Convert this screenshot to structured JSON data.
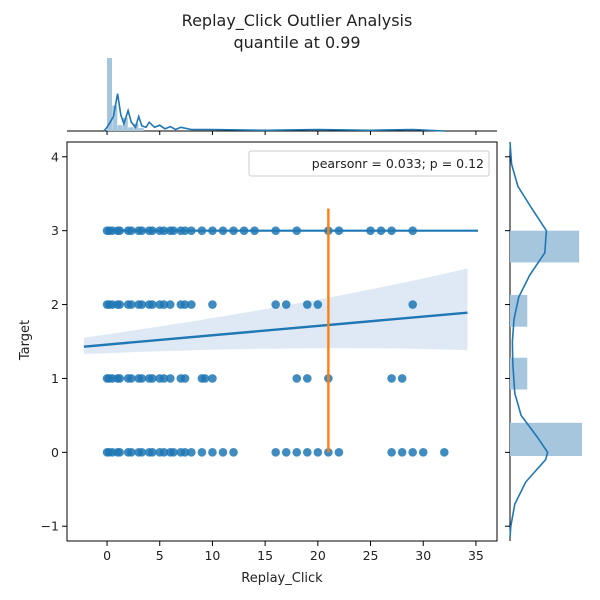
{
  "chart_data": {
    "type": "scatter",
    "title": "Replay_Click Outlier Analysis",
    "subtitle": "quantile at 0.99",
    "xlabel": "Replay_Click",
    "ylabel": "Target",
    "xlim": [
      -3.8,
      37.0
    ],
    "ylim": [
      -1.2,
      4.2
    ],
    "x_ticks": [
      0,
      5,
      10,
      15,
      20,
      25,
      30,
      35
    ],
    "y_ticks": [
      -1,
      0,
      1,
      2,
      3,
      4
    ],
    "legend": {
      "text": "pearsonr = 0.033; p = 0.12",
      "position": "top-right"
    },
    "series": [
      {
        "y": 3,
        "x": [
          0,
          0.2,
          0.5,
          1,
          1.2,
          2,
          2.3,
          3,
          3.3,
          4,
          4.3,
          5,
          5.4,
          6,
          6.3,
          7,
          7.4,
          8,
          9,
          10,
          11,
          12,
          13,
          14,
          16,
          18,
          21,
          22,
          25,
          26,
          27,
          29
        ]
      },
      {
        "y": 2,
        "x": [
          0,
          0.2,
          0.5,
          1,
          1.2,
          2,
          2.3,
          3,
          3.3,
          4,
          4.3,
          5,
          5.4,
          6,
          7,
          7.4,
          8,
          10,
          16,
          17,
          19,
          20,
          29
        ]
      },
      {
        "y": 1,
        "x": [
          0,
          0.2,
          0.5,
          1,
          1.2,
          2,
          2.3,
          3,
          3.3,
          4,
          4.3,
          5,
          5.4,
          6,
          7,
          7.4,
          9,
          9.3,
          10,
          18,
          19,
          21,
          27,
          28
        ]
      },
      {
        "y": 0,
        "x": [
          0,
          0.2,
          0.5,
          1,
          1.2,
          2,
          2.3,
          3,
          3.3,
          4,
          4.3,
          5,
          5.4,
          6,
          6.3,
          7,
          7.4,
          8,
          9,
          10,
          11,
          12,
          16,
          17,
          18,
          19,
          20,
          21,
          22,
          27,
          28,
          29,
          30,
          32
        ]
      }
    ],
    "regression": {
      "x": [
        -2.2,
        34.2
      ],
      "y": [
        1.43,
        1.89
      ],
      "ci_upper_end": [
        1.55,
        2.49
      ],
      "ci_lower_end": [
        1.33,
        1.38
      ],
      "ci_mid": [
        20,
        1.66
      ]
    },
    "quantile_line": {
      "x": 21,
      "y_range": [
        0,
        3.3
      ],
      "color": "#ff7f0e"
    },
    "colors": {
      "points": "#1f77b4",
      "line": "#1f77b4",
      "band": "#aec7e8",
      "quantile": "#ff7f0e",
      "hist": "#a6c6dd"
    },
    "marginal_x_hist": {
      "bins": [
        0.5,
        1,
        1.5,
        2,
        2.5,
        3,
        3.5
      ],
      "counts": [
        1.0,
        0.35,
        0.08,
        0.18,
        0.05,
        0.1,
        0.04
      ],
      "bin_edges_start": 0,
      "bin_width": 0.5
    },
    "marginal_x_kde": {
      "x": [
        -0.3,
        0,
        0.3,
        0.6,
        1,
        1.3,
        1.6,
        2,
        2.3,
        2.7,
        3,
        3.3,
        3.7,
        4,
        4.5,
        5,
        5.5,
        6,
        6.5,
        7,
        8,
        10,
        15,
        20,
        25,
        29,
        32
      ],
      "y": [
        0.0,
        0.05,
        0.12,
        0.2,
        0.51,
        0.22,
        0.1,
        0.28,
        0.12,
        0.05,
        0.2,
        0.07,
        0.05,
        0.12,
        0.05,
        0.08,
        0.03,
        0.06,
        0.02,
        0.05,
        0.02,
        0.02,
        0.01,
        0.02,
        0.01,
        0.02,
        0.0
      ]
    },
    "marginal_y_hist": {
      "bins": [
        {
          "y0": -0.05,
          "y1": 0.4,
          "value": 1.0
        },
        {
          "y0": 0.85,
          "y1": 1.28,
          "value": 0.24
        },
        {
          "y0": 1.7,
          "y1": 2.13,
          "value": 0.24
        },
        {
          "y0": 2.57,
          "y1": 3.0,
          "value": 0.96
        }
      ]
    },
    "marginal_y_kde": {
      "y": [
        -1.15,
        -1.0,
        -0.7,
        -0.4,
        -0.1,
        0.0,
        0.2,
        0.5,
        0.8,
        1.2,
        1.5,
        1.8,
        2.1,
        2.4,
        2.7,
        3.0,
        3.3,
        3.6,
        3.9,
        4.2
      ],
      "v": [
        0.0,
        0.02,
        0.12,
        0.4,
        0.9,
        0.95,
        0.7,
        0.28,
        0.12,
        0.07,
        0.06,
        0.1,
        0.22,
        0.5,
        0.88,
        0.92,
        0.55,
        0.2,
        0.04,
        0.0
      ]
    }
  }
}
